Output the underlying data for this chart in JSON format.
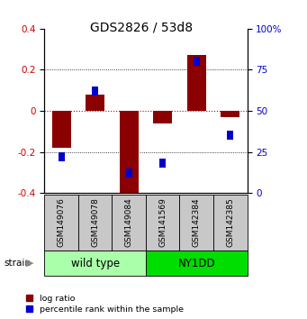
{
  "title": "GDS2826 / 53d8",
  "samples": [
    "GSM149076",
    "GSM149078",
    "GSM149084",
    "GSM141569",
    "GSM142384",
    "GSM142385"
  ],
  "log_ratios": [
    -0.18,
    0.08,
    -0.42,
    -0.06,
    0.27,
    -0.03
  ],
  "percentile_ranks": [
    22,
    62,
    12,
    18,
    80,
    35
  ],
  "ylim_left": [
    -0.4,
    0.4
  ],
  "ylim_right": [
    0,
    100
  ],
  "left_ticks": [
    -0.4,
    -0.2,
    0.0,
    0.2,
    0.4
  ],
  "right_ticks": [
    0,
    25,
    50,
    75,
    100
  ],
  "groups": [
    {
      "label": "wild type",
      "n": 3,
      "color": "#aaffaa"
    },
    {
      "label": "NY1DD",
      "n": 3,
      "color": "#00dd00"
    }
  ],
  "bar_color": "#8B0000",
  "blue_color": "#0000CC",
  "bar_width": 0.55,
  "zero_line_color": "#CC0000",
  "grid_color": "#000000",
  "bg_color": "#FFFFFF",
  "label_color_left": "#CC0000",
  "label_color_right": "#0000CC",
  "strain_label": "strain",
  "legend_log": "log ratio",
  "legend_pct": "percentile rank within the sample",
  "title_fontsize": 10,
  "tick_fontsize": 7.5,
  "sample_fontsize": 6.5,
  "group_fontsize": 8.5
}
